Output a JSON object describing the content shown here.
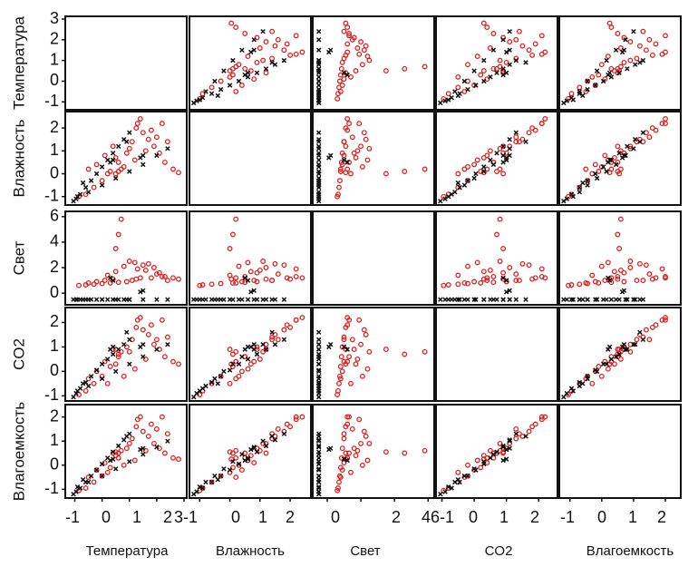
{
  "chart_data": {
    "type": "scatter",
    "variables": [
      "Температура",
      "Влажность",
      "Свет",
      "CO2",
      "Влагоемкость"
    ],
    "axes": [
      {
        "name": "Температура",
        "range": [
          -1.25,
          3.0
        ],
        "ticks": [
          -1,
          0,
          1,
          2,
          3
        ],
        "tick_labels": [
          "-1",
          "0",
          "1",
          "2",
          "3"
        ]
      },
      {
        "name": "Влажность",
        "range": [
          -1.25,
          2.6
        ],
        "ticks": [
          -1,
          0,
          1,
          2
        ],
        "tick_labels": [
          "-1",
          "0",
          "1",
          "2"
        ]
      },
      {
        "name": "Свет",
        "range": [
          -0.7,
          6.2
        ],
        "ticks": [
          0,
          2,
          4,
          6
        ],
        "tick_labels": [
          "0",
          "2",
          "4",
          "6"
        ]
      },
      {
        "name": "CO2",
        "range": [
          -1.1,
          2.5
        ],
        "ticks": [
          -1,
          0,
          1,
          2
        ],
        "tick_labels": [
          "-1",
          "0",
          "1",
          "2"
        ]
      },
      {
        "name": "Влагоемкость",
        "range": [
          -1.25,
          2.4
        ],
        "ticks": [
          -1,
          0,
          1,
          2
        ],
        "tick_labels": [
          "-1",
          "0",
          "1",
          "2"
        ]
      }
    ],
    "x_tick_strip": [
      "-1",
      "0",
      "1",
      "2",
      "3-1",
      "0",
      "1",
      "2",
      "0",
      "2",
      "4",
      "6-1",
      "0",
      "1",
      "2",
      "-1",
      "0",
      "1",
      "2"
    ],
    "series": [
      {
        "color": "#e02020",
        "marker": "circle",
        "values": [
          [
            -0.85,
            -1.0,
            0.6,
            -0.95,
            -1.05
          ],
          [
            -0.6,
            -0.9,
            0.65,
            -0.8,
            -0.95
          ],
          [
            -0.3,
            -0.6,
            0.7,
            -0.5,
            -0.7
          ],
          [
            0.0,
            -0.3,
            0.75,
            -0.2,
            -0.45
          ],
          [
            0.3,
            0.1,
            0.8,
            0.2,
            -0.1
          ],
          [
            0.6,
            0.5,
            0.85,
            0.6,
            0.3
          ],
          [
            0.9,
            0.9,
            0.9,
            1.0,
            0.7
          ],
          [
            1.1,
            1.4,
            1.0,
            1.3,
            1.1
          ],
          [
            1.25,
            2.0,
            1.1,
            1.8,
            1.6
          ],
          [
            1.4,
            2.4,
            1.2,
            2.2,
            2.0
          ],
          [
            1.3,
            2.2,
            1.9,
            2.1,
            1.9
          ],
          [
            1.5,
            1.8,
            2.2,
            1.7,
            1.4
          ],
          [
            1.7,
            1.5,
            2.3,
            1.5,
            1.2
          ],
          [
            1.9,
            1.2,
            2.0,
            1.1,
            0.9
          ],
          [
            2.1,
            0.9,
            1.6,
            0.9,
            0.7
          ],
          [
            2.3,
            0.5,
            1.3,
            0.6,
            0.5
          ],
          [
            2.6,
            0.2,
            1.2,
            0.4,
            0.3
          ],
          [
            2.8,
            0.05,
            1.1,
            0.3,
            0.25
          ],
          [
            2.4,
            1.4,
            1.0,
            1.4,
            1.3
          ],
          [
            2.0,
            1.6,
            1.5,
            1.3,
            1.5
          ],
          [
            1.6,
            1.0,
            1.8,
            0.5,
            0.6
          ],
          [
            1.2,
            0.6,
            2.4,
            0.1,
            0.2
          ],
          [
            0.8,
            0.3,
            2.1,
            -0.2,
            0.0
          ],
          [
            0.5,
            0.7,
            1.7,
            0.3,
            0.4
          ],
          [
            0.2,
            0.0,
            1.4,
            -0.5,
            -0.3
          ],
          [
            1.0,
            1.1,
            2.5,
            0.8,
            0.9
          ],
          [
            0.7,
            0.2,
            5.8,
            0.8,
            0.6
          ],
          [
            0.6,
            0.1,
            4.6,
            0.7,
            0.5
          ],
          [
            0.5,
            0.0,
            3.5,
            0.9,
            0.55
          ],
          [
            1.8,
            1.9,
            1.2,
            1.9,
            1.7
          ],
          [
            2.2,
            2.2,
            1.3,
            2.1,
            2.0
          ],
          [
            -0.2,
            0.4,
            0.9,
            0.0,
            -0.2
          ],
          [
            0.1,
            0.8,
            1.0,
            0.4,
            0.1
          ],
          [
            0.4,
            1.2,
            1.1,
            0.9,
            0.5
          ],
          [
            -0.5,
            0.2,
            0.8,
            -0.3,
            -0.5
          ]
        ]
      },
      {
        "color": "#111111",
        "marker": "x",
        "values": [
          [
            -1.05,
            -1.2,
            -0.5,
            -1.05,
            -1.2
          ],
          [
            -0.95,
            -1.1,
            -0.5,
            -0.9,
            -1.1
          ],
          [
            -0.8,
            -0.9,
            -0.5,
            -0.7,
            -0.95
          ],
          [
            -0.6,
            -0.6,
            -0.5,
            -0.45,
            -0.7
          ],
          [
            -0.4,
            -0.3,
            -0.5,
            -0.2,
            -0.45
          ],
          [
            -0.2,
            0.0,
            -0.5,
            0.05,
            -0.2
          ],
          [
            0.0,
            0.3,
            -0.5,
            0.3,
            0.05
          ],
          [
            0.2,
            0.6,
            -0.5,
            0.5,
            0.3
          ],
          [
            0.4,
            0.9,
            -0.5,
            0.7,
            0.55
          ],
          [
            0.6,
            1.2,
            -0.5,
            0.9,
            0.8
          ],
          [
            0.8,
            1.5,
            -0.5,
            1.1,
            1.05
          ],
          [
            1.0,
            1.8,
            -0.5,
            1.3,
            1.3
          ],
          [
            -0.9,
            -1.0,
            -0.5,
            -0.8,
            -0.9
          ],
          [
            -0.5,
            -0.8,
            -0.5,
            -0.6,
            -0.7
          ],
          [
            0.0,
            -0.5,
            -0.5,
            -0.3,
            -0.45
          ],
          [
            0.5,
            -0.2,
            -0.5,
            0.0,
            -0.15
          ],
          [
            1.0,
            0.1,
            -0.5,
            0.3,
            0.15
          ],
          [
            1.5,
            0.4,
            -0.5,
            0.6,
            0.45
          ],
          [
            2.0,
            0.8,
            -0.5,
            0.9,
            0.75
          ],
          [
            2.4,
            1.1,
            -0.5,
            1.1,
            1.0
          ],
          [
            0.3,
            0.5,
            1.2,
            0.9,
            0.2
          ],
          [
            0.4,
            0.6,
            1.0,
            1.0,
            0.25
          ],
          [
            1.5,
            0.8,
            0.2,
            1.1,
            0.7
          ],
          [
            1.4,
            0.7,
            0.1,
            1.0,
            0.65
          ],
          [
            0.9,
            1.4,
            -0.5,
            1.6,
            1.2
          ],
          [
            -0.7,
            -0.4,
            -0.5,
            -0.5,
            -0.6
          ]
        ]
      }
    ],
    "grid": false,
    "legend": "none"
  }
}
